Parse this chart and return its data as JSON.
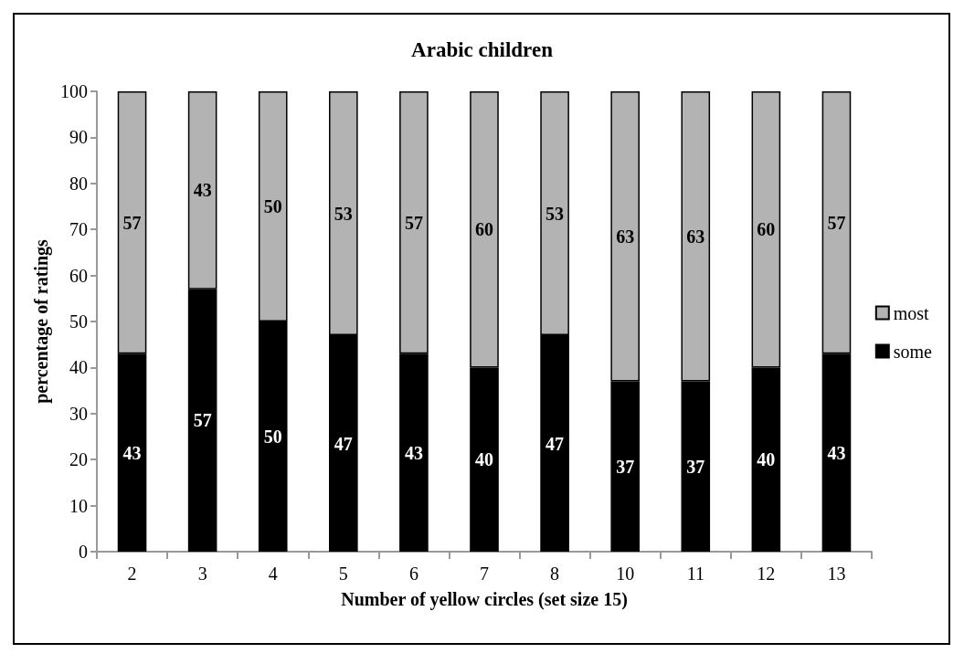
{
  "chart_data": {
    "type": "bar",
    "title": "Arabic children",
    "xlabel": "Number of yellow circles (set size 15)",
    "ylabel": "percentage of ratings",
    "categories": [
      "2",
      "3",
      "4",
      "5",
      "6",
      "7",
      "8",
      "10",
      "11",
      "12",
      "13"
    ],
    "series": [
      {
        "name": "some",
        "color": "#000000",
        "values": [
          43,
          57,
          50,
          47,
          43,
          40,
          47,
          37,
          37,
          40,
          43
        ]
      },
      {
        "name": "most",
        "color": "#b3b3b3",
        "values": [
          57,
          43,
          50,
          53,
          57,
          60,
          53,
          63,
          63,
          60,
          57
        ]
      }
    ],
    "stacked": true,
    "ylim": [
      0,
      100
    ],
    "yticks": [
      0,
      10,
      20,
      30,
      40,
      50,
      60,
      70,
      80,
      90,
      100
    ],
    "grid": false,
    "legend": "right",
    "data_labels": true
  }
}
